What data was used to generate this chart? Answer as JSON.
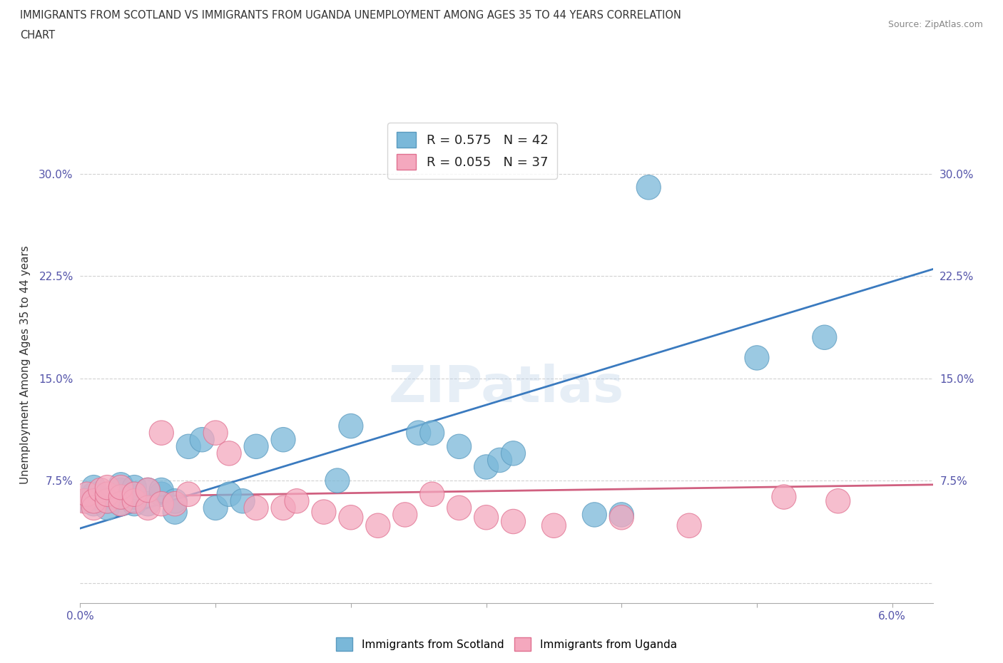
{
  "title_line1": "IMMIGRANTS FROM SCOTLAND VS IMMIGRANTS FROM UGANDA UNEMPLOYMENT AMONG AGES 35 TO 44 YEARS CORRELATION",
  "title_line2": "CHART",
  "source": "Source: ZipAtlas.com",
  "ylabel": "Unemployment Among Ages 35 to 44 years",
  "xlim": [
    0.0,
    0.063
  ],
  "ylim": [
    -0.015,
    0.335
  ],
  "xticks": [
    0.0,
    0.01,
    0.02,
    0.03,
    0.04,
    0.05,
    0.06
  ],
  "xticklabels": [
    "0.0%",
    "",
    "",
    "",
    "",
    "",
    "6.0%"
  ],
  "yticks": [
    0.0,
    0.075,
    0.15,
    0.225,
    0.3
  ],
  "yticklabels": [
    "",
    "7.5%",
    "15.0%",
    "22.5%",
    "30.0%"
  ],
  "scotland_color": "#7ab8d9",
  "scotland_edge_color": "#5a9abf",
  "uganda_color": "#f4a8be",
  "uganda_edge_color": "#e07090",
  "scotland_label": "Immigrants from Scotland",
  "uganda_label": "Immigrants from Uganda",
  "scotland_R": 0.575,
  "scotland_N": 42,
  "uganda_R": 0.055,
  "uganda_N": 37,
  "watermark": "ZIPatlas",
  "background_color": "#ffffff",
  "grid_color": "#cccccc",
  "scotland_trend_color": "#3a7abf",
  "uganda_trend_color": "#d06080",
  "scotland_scatter_x": [
    0.0005,
    0.001,
    0.001,
    0.001,
    0.0015,
    0.002,
    0.002,
    0.0025,
    0.003,
    0.003,
    0.003,
    0.003,
    0.004,
    0.004,
    0.004,
    0.004,
    0.005,
    0.005,
    0.006,
    0.006,
    0.007,
    0.007,
    0.008,
    0.009,
    0.01,
    0.011,
    0.012,
    0.013,
    0.015,
    0.019,
    0.02,
    0.025,
    0.026,
    0.028,
    0.03,
    0.031,
    0.032,
    0.038,
    0.04,
    0.042,
    0.05,
    0.055
  ],
  "scotland_scatter_y": [
    0.06,
    0.058,
    0.065,
    0.07,
    0.062,
    0.06,
    0.055,
    0.063,
    0.058,
    0.063,
    0.068,
    0.072,
    0.058,
    0.063,
    0.065,
    0.07,
    0.058,
    0.068,
    0.065,
    0.068,
    0.052,
    0.06,
    0.1,
    0.105,
    0.055,
    0.065,
    0.06,
    0.1,
    0.105,
    0.075,
    0.115,
    0.11,
    0.11,
    0.1,
    0.085,
    0.09,
    0.095,
    0.05,
    0.05,
    0.29,
    0.165,
    0.18
  ],
  "uganda_scatter_x": [
    0.0003,
    0.0005,
    0.001,
    0.001,
    0.0015,
    0.002,
    0.002,
    0.002,
    0.003,
    0.003,
    0.003,
    0.004,
    0.004,
    0.005,
    0.005,
    0.006,
    0.006,
    0.007,
    0.008,
    0.01,
    0.011,
    0.013,
    0.015,
    0.016,
    0.018,
    0.02,
    0.022,
    0.024,
    0.026,
    0.028,
    0.03,
    0.032,
    0.035,
    0.04,
    0.045,
    0.052,
    0.056
  ],
  "uganda_scatter_y": [
    0.06,
    0.065,
    0.055,
    0.06,
    0.068,
    0.06,
    0.065,
    0.07,
    0.058,
    0.063,
    0.07,
    0.06,
    0.065,
    0.055,
    0.068,
    0.058,
    0.11,
    0.058,
    0.065,
    0.11,
    0.095,
    0.055,
    0.055,
    0.06,
    0.052,
    0.048,
    0.042,
    0.05,
    0.065,
    0.055,
    0.048,
    0.045,
    0.042,
    0.048,
    0.042,
    0.063,
    0.06
  ],
  "scotland_trend_x": [
    0.0,
    0.063
  ],
  "scotland_trend_y": [
    0.04,
    0.23
  ],
  "uganda_trend_x": [
    0.0,
    0.063
  ],
  "uganda_trend_y": [
    0.063,
    0.072
  ]
}
